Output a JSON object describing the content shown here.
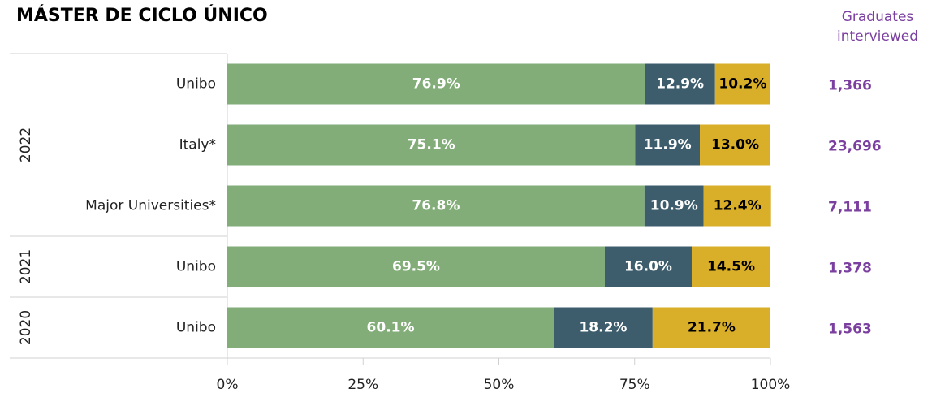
{
  "chart_data": {
    "type": "stacked-bar-horizontal",
    "title": "MÁSTER DE CICLO ÚNICO",
    "categories": [
      "Unibo",
      "Italy*",
      "Major Universities*",
      "Unibo",
      "Unibo"
    ],
    "groups": [
      {
        "label": "2022",
        "size": 3
      },
      {
        "label": "2021",
        "size": 1
      },
      {
        "label": "2020",
        "size": 1
      }
    ],
    "series": [
      {
        "color": "#82ad78",
        "label_color": "#ffffff",
        "values": [
          76.9,
          75.1,
          76.8,
          69.5,
          60.1
        ],
        "value_labels": [
          "76.9%",
          "75.1%",
          "76.8%",
          "69.5%",
          "60.1%"
        ]
      },
      {
        "color": "#3d5d6d",
        "label_color": "#ffffff",
        "values": [
          12.9,
          11.9,
          10.9,
          16.0,
          18.2
        ],
        "value_labels": [
          "12.9%",
          "11.9%",
          "10.9%",
          "16.0%",
          "18.2%"
        ]
      },
      {
        "color": "#d9ae29",
        "label_color": "#000000",
        "values": [
          10.2,
          13.0,
          12.4,
          14.5,
          21.7
        ],
        "value_labels": [
          "10.2%",
          "13.0%",
          "12.4%",
          "14.5%",
          "21.7%"
        ]
      }
    ],
    "xlim": [
      0,
      100
    ],
    "xticks": [
      {
        "value": 0,
        "label": "0%"
      },
      {
        "value": 25,
        "label": "25%"
      },
      {
        "value": 50,
        "label": "50%"
      },
      {
        "value": 75,
        "label": "75%"
      },
      {
        "value": 100,
        "label": "100%"
      }
    ],
    "side_column": {
      "title_lines": [
        "Graduates",
        "interviewed"
      ],
      "color": "#7b3fa0",
      "values": [
        "1,366",
        "23,696",
        "7,111",
        "1,378",
        "1,563"
      ]
    }
  }
}
